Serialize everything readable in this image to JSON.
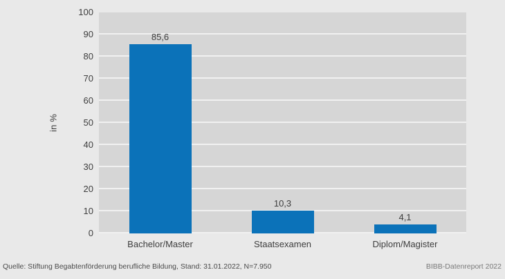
{
  "chart_data": {
    "type": "bar",
    "title": "",
    "categories": [
      "Bachelor/Master",
      "Staatsexamen",
      "Diplom/Magister"
    ],
    "values": [
      85.6,
      10.3,
      4.1
    ],
    "value_labels": [
      "85,6",
      "10,3",
      "4,1"
    ],
    "xlabel": "",
    "ylabel": "in %",
    "ylim": [
      0,
      100
    ],
    "ytick_step": 10,
    "ytick_labels": [
      "100",
      "90",
      "80",
      "70",
      "60",
      "50",
      "40",
      "30",
      "20",
      "10",
      "0"
    ],
    "grid": "horizontal",
    "legend_position": "none",
    "bar_color": "#0b72b9"
  },
  "footer": {
    "source": "Quelle: Stiftung Begabtenförderung berufliche Bildung, Stand: 31.01.2022, N=7.950",
    "report": "BIBB-Datenreport 2022"
  },
  "colors": {
    "background": "#e9e9e9",
    "plot_band": "#d6d6d6",
    "gridline": "#f1f1f1",
    "bar": "#0b72b9",
    "text": "#3d3d3d",
    "source_text": "#4a4a4a",
    "report_text": "#7a7a7a"
  }
}
